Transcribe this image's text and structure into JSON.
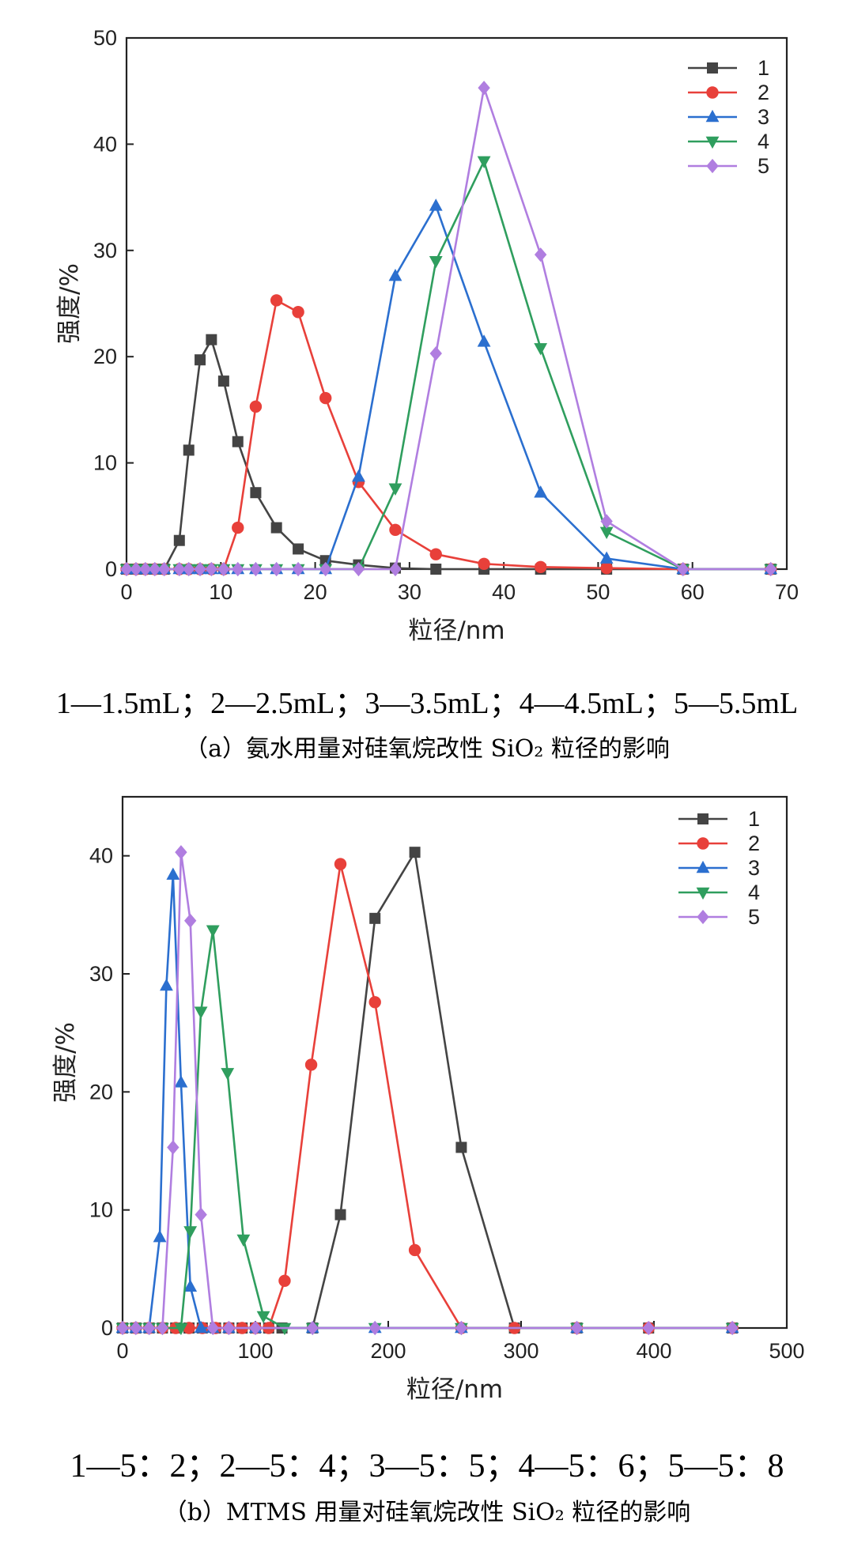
{
  "chart_data": [
    {
      "type": "line",
      "xlabel": "粒径/nm",
      "ylabel": "强度/%",
      "xlim": [
        0,
        70
      ],
      "ylim": [
        0,
        50
      ],
      "xticks": [
        0,
        10,
        20,
        30,
        40,
        50,
        60,
        70
      ],
      "yticks": [
        0,
        10,
        20,
        30,
        40,
        50
      ],
      "legend_position": "top-right",
      "series": [
        {
          "name": "1",
          "color": "#444444",
          "marker": "square",
          "x": [
            0,
            1,
            2,
            3,
            4,
            5.6,
            6.6,
            7.8,
            9.0,
            10.3,
            11.8,
            13.7,
            15.9,
            18.2,
            21.1,
            24.6,
            28.5,
            32.8,
            37.9,
            43.9,
            50.9,
            59.0,
            68.3
          ],
          "y": [
            0,
            0,
            0,
            0,
            0,
            2.7,
            11.2,
            19.7,
            21.6,
            17.7,
            12.0,
            7.2,
            3.9,
            1.9,
            0.8,
            0.4,
            0.1,
            0,
            0,
            0,
            0,
            0,
            0
          ]
        },
        {
          "name": "2",
          "color": "#e8403a",
          "marker": "circle",
          "x": [
            0,
            1,
            2,
            3,
            4,
            5.6,
            6.6,
            7.8,
            9.0,
            10.3,
            11.8,
            13.7,
            15.9,
            18.2,
            21.1,
            24.6,
            28.5,
            32.8,
            37.9,
            43.9,
            50.9,
            59.0,
            68.3
          ],
          "y": [
            0,
            0,
            0,
            0,
            0,
            0,
            0,
            0,
            0,
            0,
            3.9,
            15.3,
            25.3,
            24.2,
            16.1,
            8.2,
            3.7,
            1.4,
            0.5,
            0.2,
            0.1,
            0,
            0
          ]
        },
        {
          "name": "3",
          "color": "#2b6fcf",
          "marker": "triangle-up",
          "x": [
            0,
            1,
            2,
            3,
            4,
            5.6,
            6.6,
            7.8,
            9.0,
            10.3,
            11.8,
            13.7,
            15.9,
            18.2,
            21.1,
            24.6,
            28.5,
            32.8,
            37.9,
            43.9,
            50.9,
            59.0,
            68.3
          ],
          "y": [
            0,
            0,
            0,
            0,
            0,
            0,
            0,
            0,
            0,
            0,
            0,
            0,
            0,
            0,
            0,
            8.7,
            27.6,
            34.2,
            21.4,
            7.2,
            1.0,
            0,
            0
          ]
        },
        {
          "name": "4",
          "color": "#2f9e5e",
          "marker": "triangle-down",
          "x": [
            0,
            1,
            2,
            3,
            4,
            5.6,
            6.6,
            7.8,
            9.0,
            10.3,
            11.8,
            13.7,
            15.9,
            18.2,
            21.1,
            24.6,
            28.5,
            32.8,
            37.9,
            43.9,
            50.9,
            59.0,
            68.3
          ],
          "y": [
            0,
            0,
            0,
            0,
            0,
            0,
            0,
            0,
            0,
            0,
            0,
            0,
            0,
            0,
            0,
            0,
            7.6,
            29.0,
            38.4,
            20.8,
            3.5,
            0,
            0
          ]
        },
        {
          "name": "5",
          "color": "#b07ee0",
          "marker": "diamond",
          "x": [
            0,
            1,
            2,
            3,
            4,
            5.6,
            6.6,
            7.8,
            9.0,
            10.3,
            11.8,
            13.7,
            15.9,
            18.2,
            21.1,
            24.6,
            28.5,
            32.8,
            37.9,
            43.9,
            50.9,
            59.0,
            68.3
          ],
          "y": [
            0,
            0,
            0,
            0,
            0,
            0,
            0,
            0,
            0,
            0,
            0,
            0,
            0,
            0,
            0,
            0,
            0,
            20.3,
            45.3,
            29.6,
            4.5,
            0,
            0
          ]
        }
      ],
      "conditions": "1—1.5mL；2—2.5mL；3—3.5mL；4—4.5mL；5—5.5mL",
      "caption": "（a）氨水用量对硅氧烷改性 SiO₂ 粒径的影响"
    },
    {
      "type": "line",
      "xlabel": "粒径/nm",
      "ylabel": "强度/%",
      "xlim": [
        0,
        500
      ],
      "ylim": [
        0,
        45
      ],
      "xticks": [
        0,
        100,
        200,
        300,
        400,
        500
      ],
      "yticks": [
        0,
        10,
        20,
        30,
        40
      ],
      "legend_position": "top-right",
      "series": [
        {
          "name": "1",
          "color": "#444444",
          "marker": "square",
          "x": [
            0,
            10,
            20,
            30,
            40,
            50,
            60,
            70,
            80,
            90,
            100,
            110,
            120,
            143,
            164,
            190,
            220,
            255,
            295,
            342,
            396,
            459
          ],
          "y": [
            0,
            0,
            0,
            0,
            0,
            0,
            0,
            0,
            0,
            0,
            0,
            0,
            0,
            0,
            9.6,
            34.7,
            40.3,
            15.3,
            0,
            0,
            0,
            0
          ]
        },
        {
          "name": "2",
          "color": "#e8403a",
          "marker": "circle",
          "x": [
            0,
            10,
            20,
            30,
            40,
            50,
            60,
            70,
            80,
            90,
            100,
            110,
            122,
            142,
            164,
            190,
            220,
            255,
            295,
            342,
            396,
            459
          ],
          "y": [
            0,
            0,
            0,
            0,
            0,
            0,
            0,
            0,
            0,
            0,
            0,
            0,
            4.0,
            22.3,
            39.3,
            27.6,
            6.6,
            0,
            0,
            0,
            0,
            0
          ]
        },
        {
          "name": "3",
          "color": "#2b6fcf",
          "marker": "triangle-up",
          "x": [
            0,
            10,
            20,
            28,
            33,
            38,
            44,
            51,
            59,
            68,
            80,
            100,
            143,
            190,
            255,
            342,
            459
          ],
          "y": [
            0,
            0,
            0,
            7.7,
            29.0,
            38.4,
            20.8,
            3.5,
            0,
            0,
            0,
            0,
            0,
            0,
            0,
            0,
            0
          ]
        },
        {
          "name": "4",
          "color": "#2f9e5e",
          "marker": "triangle-down",
          "x": [
            0,
            10,
            20,
            30,
            44,
            51,
            59,
            68,
            79,
            91,
            106,
            122,
            143,
            190,
            255,
            342,
            459
          ],
          "y": [
            0,
            0,
            0,
            0,
            0,
            8.2,
            26.8,
            33.7,
            21.6,
            7.5,
            1.0,
            0,
            0,
            0,
            0,
            0,
            0
          ]
        },
        {
          "name": "5",
          "color": "#b07ee0",
          "marker": "diamond",
          "x": [
            0,
            10,
            20,
            30,
            38,
            44,
            51,
            59,
            68,
            80,
            100,
            143,
            190,
            255,
            342,
            396,
            459
          ],
          "y": [
            0,
            0,
            0,
            0,
            15.3,
            40.3,
            34.5,
            9.6,
            0,
            0,
            0,
            0,
            0,
            0,
            0,
            0,
            0
          ]
        }
      ],
      "conditions": "1—5：2；2—5：4；3—5：5；4—5：6；5—5：8",
      "caption": "（b）MTMS 用量对硅氧烷改性 SiO₂ 粒径的影响"
    }
  ]
}
